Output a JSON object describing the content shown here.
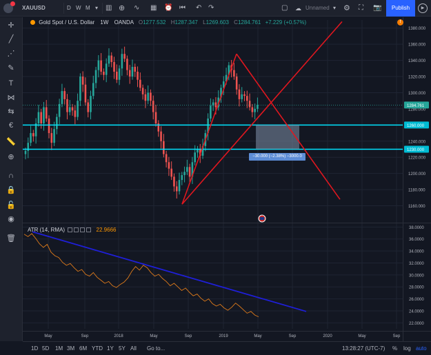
{
  "topbar": {
    "symbol": "XAUUSD",
    "intervals": [
      "D",
      "W",
      "M"
    ],
    "layout_name": "Unnamed",
    "publish_label": "Publish"
  },
  "legend": {
    "title": "Gold Spot / U.S. Dollar",
    "interval": "1W",
    "source": "OANDA",
    "open_label": "O",
    "open": "1277.532",
    "high_label": "H",
    "high": "1287.347",
    "low_label": "L",
    "low": "1269.603",
    "close_label": "C",
    "close": "1284.761",
    "change": "+7.229 (+0.57%)"
  },
  "atr": {
    "label": "ATR (14, RMA)",
    "value": "22.9666"
  },
  "measure_label": "−30.000 (−2.38%) −3000.0",
  "bottombar": {
    "ranges": [
      "1D",
      "5D",
      "1M",
      "3M",
      "6M",
      "YTD",
      "1Y",
      "5Y",
      "All"
    ],
    "goto": "Go to...",
    "clock": "13:28:27 (UTC-7)",
    "percent": "%",
    "log": "log",
    "auto": "auto"
  },
  "colors": {
    "up": "#26a69a",
    "down": "#ef5350",
    "trend_red": "#e0171f",
    "hline_cyan": "#00e5ff",
    "atr_line": "#e07b1a",
    "atr_trend": "#1f1fd8",
    "accent": "#2962ff"
  },
  "chart_data": [
    {
      "type": "candlestick",
      "symbol": "XAUUSD",
      "title": "Gold Spot / U.S. Dollar",
      "interval": "1W",
      "y_ticks": [
        1160,
        1180,
        1200,
        1220,
        1240,
        1260,
        1280,
        1300,
        1320,
        1340,
        1360,
        1380
      ],
      "ylim": [
        1140,
        1390
      ],
      "x_ticks": [
        "May",
        "Sep",
        "2018",
        "May",
        "Sep",
        "2019",
        "May",
        "Sep",
        "2020",
        "May",
        "Sep"
      ],
      "price_labels": [
        "1284.761",
        "1260.000",
        "1230.000"
      ],
      "horizontal_levels": [
        1260.0,
        1230.0
      ],
      "close_path": [
        1228,
        1238,
        1250,
        1246,
        1262,
        1276,
        1262,
        1282,
        1268,
        1250,
        1238,
        1255,
        1270,
        1286,
        1302,
        1292,
        1276,
        1282,
        1278,
        1270,
        1290,
        1320,
        1310,
        1288,
        1276,
        1296,
        1312,
        1328,
        1340,
        1326,
        1322,
        1336,
        1346,
        1338,
        1326,
        1316,
        1330,
        1348,
        1342,
        1328,
        1320,
        1332,
        1326,
        1316,
        1306,
        1298,
        1290,
        1300,
        1290,
        1276,
        1262,
        1252,
        1240,
        1224,
        1214,
        1206,
        1196,
        1184,
        1178,
        1192,
        1198,
        1202,
        1208,
        1196,
        1214,
        1226,
        1230,
        1222,
        1234,
        1250,
        1268,
        1284,
        1288,
        1282,
        1294,
        1306,
        1314,
        1322,
        1334,
        1328,
        1320,
        1304,
        1292,
        1298,
        1296,
        1290,
        1282,
        1276,
        1280,
        1285
      ]
    },
    {
      "type": "line",
      "title": "ATR (14, RMA)",
      "y_ticks": [
        22.0,
        24.0,
        26.0,
        28.0,
        30.0,
        32.0,
        34.0,
        36.0,
        38.0
      ],
      "ylim": [
        21,
        38.5
      ],
      "values": [
        36.8,
        36.4,
        36.9,
        36.1,
        35.2,
        34.6,
        35.1,
        33.8,
        33.2,
        32.9,
        32.1,
        31.6,
        31.9,
        31.2,
        30.6,
        30.9,
        30.1,
        29.8,
        30.4,
        29.6,
        29.1,
        28.6,
        28.9,
        28.2,
        27.9,
        28.4,
        28.8,
        29.5,
        30.6,
        31.4,
        30.8,
        31.6,
        31.2,
        30.4,
        29.8,
        30.1,
        29.4,
        28.9,
        28.2,
        28.6,
        28.0,
        27.4,
        27.8,
        27.1,
        26.5,
        26.8,
        26.1,
        25.6,
        26.0,
        25.2,
        24.8,
        25.1,
        24.5,
        24.1,
        24.6,
        25.3,
        24.8,
        24.2,
        23.6,
        23.9,
        23.3,
        23.0
      ]
    }
  ]
}
